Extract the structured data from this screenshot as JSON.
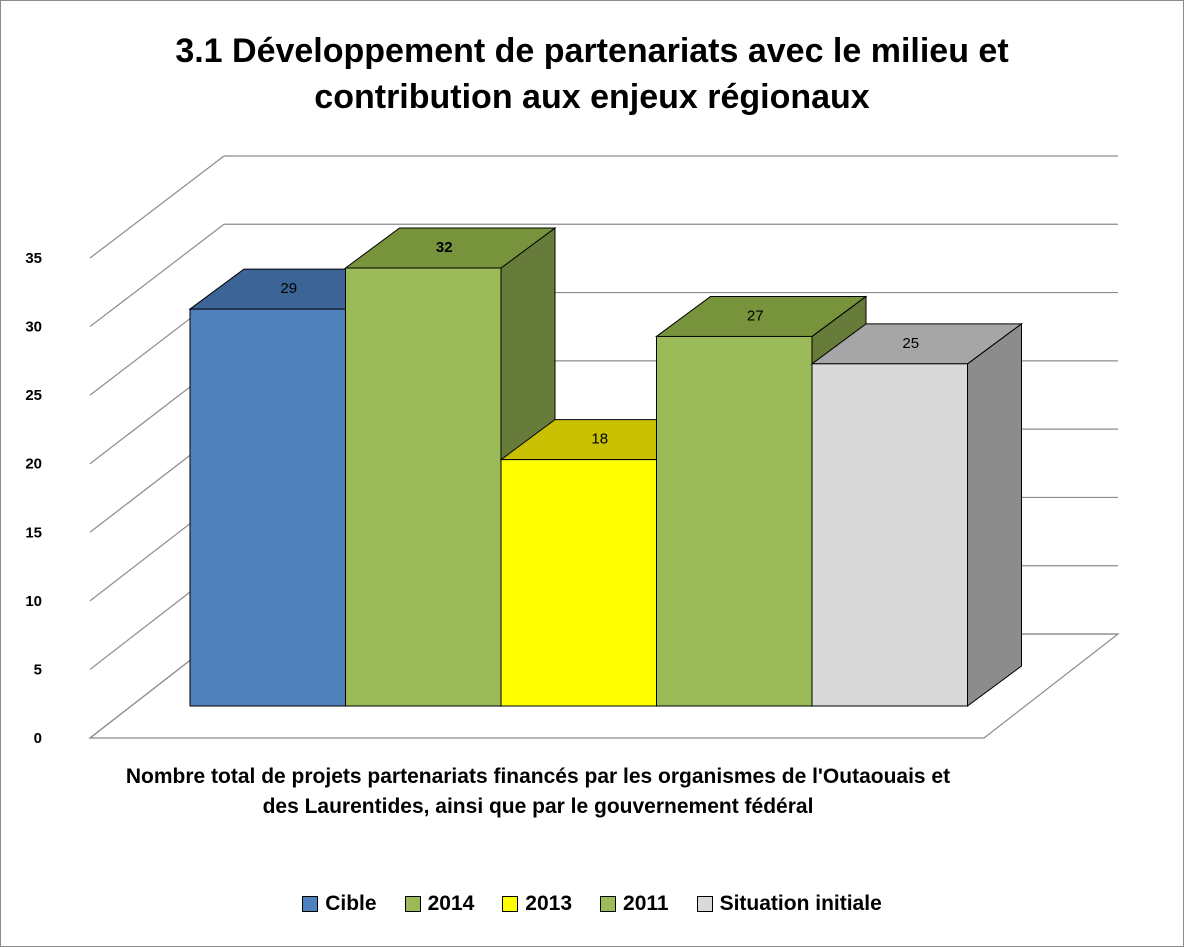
{
  "chart_data": {
    "type": "bar",
    "title": "3.1 Développement de partenariats avec le milieu et\ncontribution aux enjeux régionaux",
    "category_label": "Nombre total de projets partenariats financés par les organismes de l'Outaouais et des Laurentides, ainsi que par le gouvernement fédéral",
    "ylim": [
      0,
      35
    ],
    "ytick_step": 5,
    "grid": true,
    "three_d": true,
    "legend_position": "bottom",
    "series": [
      {
        "name": "Cible",
        "value": 29,
        "label": "29",
        "color": "#4f81bd",
        "top_color": "#3c6496",
        "side_color": "#36587f",
        "label_bold": false
      },
      {
        "name": "2014",
        "value": 32,
        "label": "32",
        "color": "#9bbb59",
        "top_color": "#77933c",
        "side_color": "#677c3a",
        "label_bold": true
      },
      {
        "name": "2013",
        "value": 18,
        "label": "18",
        "color": "#ffff00",
        "top_color": "#c8c000",
        "side_color": "#a8a000",
        "label_bold": false
      },
      {
        "name": "2011",
        "value": 27,
        "label": "27",
        "color": "#9bbb59",
        "top_color": "#77933c",
        "side_color": "#677c3a",
        "label_bold": false
      },
      {
        "name": "Situation initiale",
        "value": 25,
        "label": "25",
        "color": "#d9d9d9",
        "top_color": "#a6a6a6",
        "side_color": "#8c8c8c",
        "label_bold": false
      }
    ]
  }
}
